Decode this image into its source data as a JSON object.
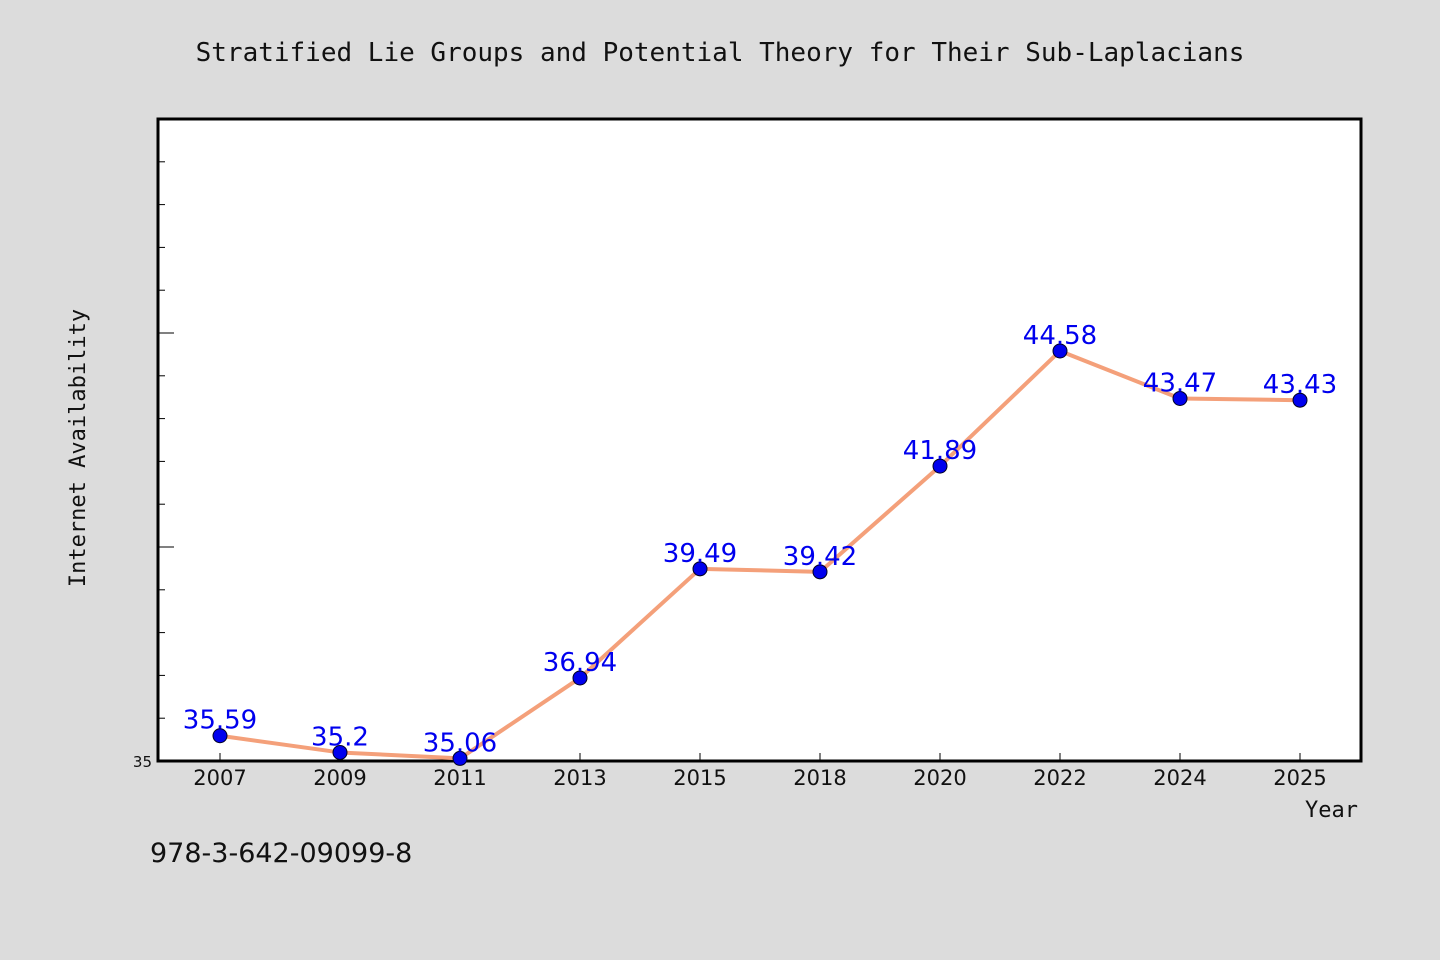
{
  "chart_data": {
    "type": "line",
    "title": "Stratified Lie Groups and Potential Theory for Their Sub-Laplacians",
    "xlabel": "Year",
    "ylabel": "Internet Availability",
    "categories": [
      "2007",
      "2009",
      "2011",
      "2013",
      "2015",
      "2018",
      "2020",
      "2022",
      "2024",
      "2025"
    ],
    "series": [
      {
        "values": [
          35.59,
          35.2,
          35.06,
          36.94,
          39.49,
          39.42,
          41.89,
          44.58,
          43.47,
          43.43
        ],
        "data_labels": [
          "35.59",
          "35.2",
          "35.06",
          "36.94",
          "39.49",
          "39.42",
          "41.89",
          "44.58",
          "43.47",
          "43.43"
        ]
      }
    ],
    "ylim": [
      35,
      50
    ],
    "yticks": [
      35
    ],
    "ytick_labels": [
      "35"
    ],
    "grid": false,
    "legend": "none",
    "line_color": "#f4a07a",
    "marker_color": "#0000ee",
    "label_color": "#0000ee"
  },
  "footer": {
    "isbn": "978-3-642-09099-8"
  },
  "colors": {
    "background": "#dcdcdc",
    "plot_background": "#ffffff",
    "axis": "#000000"
  }
}
